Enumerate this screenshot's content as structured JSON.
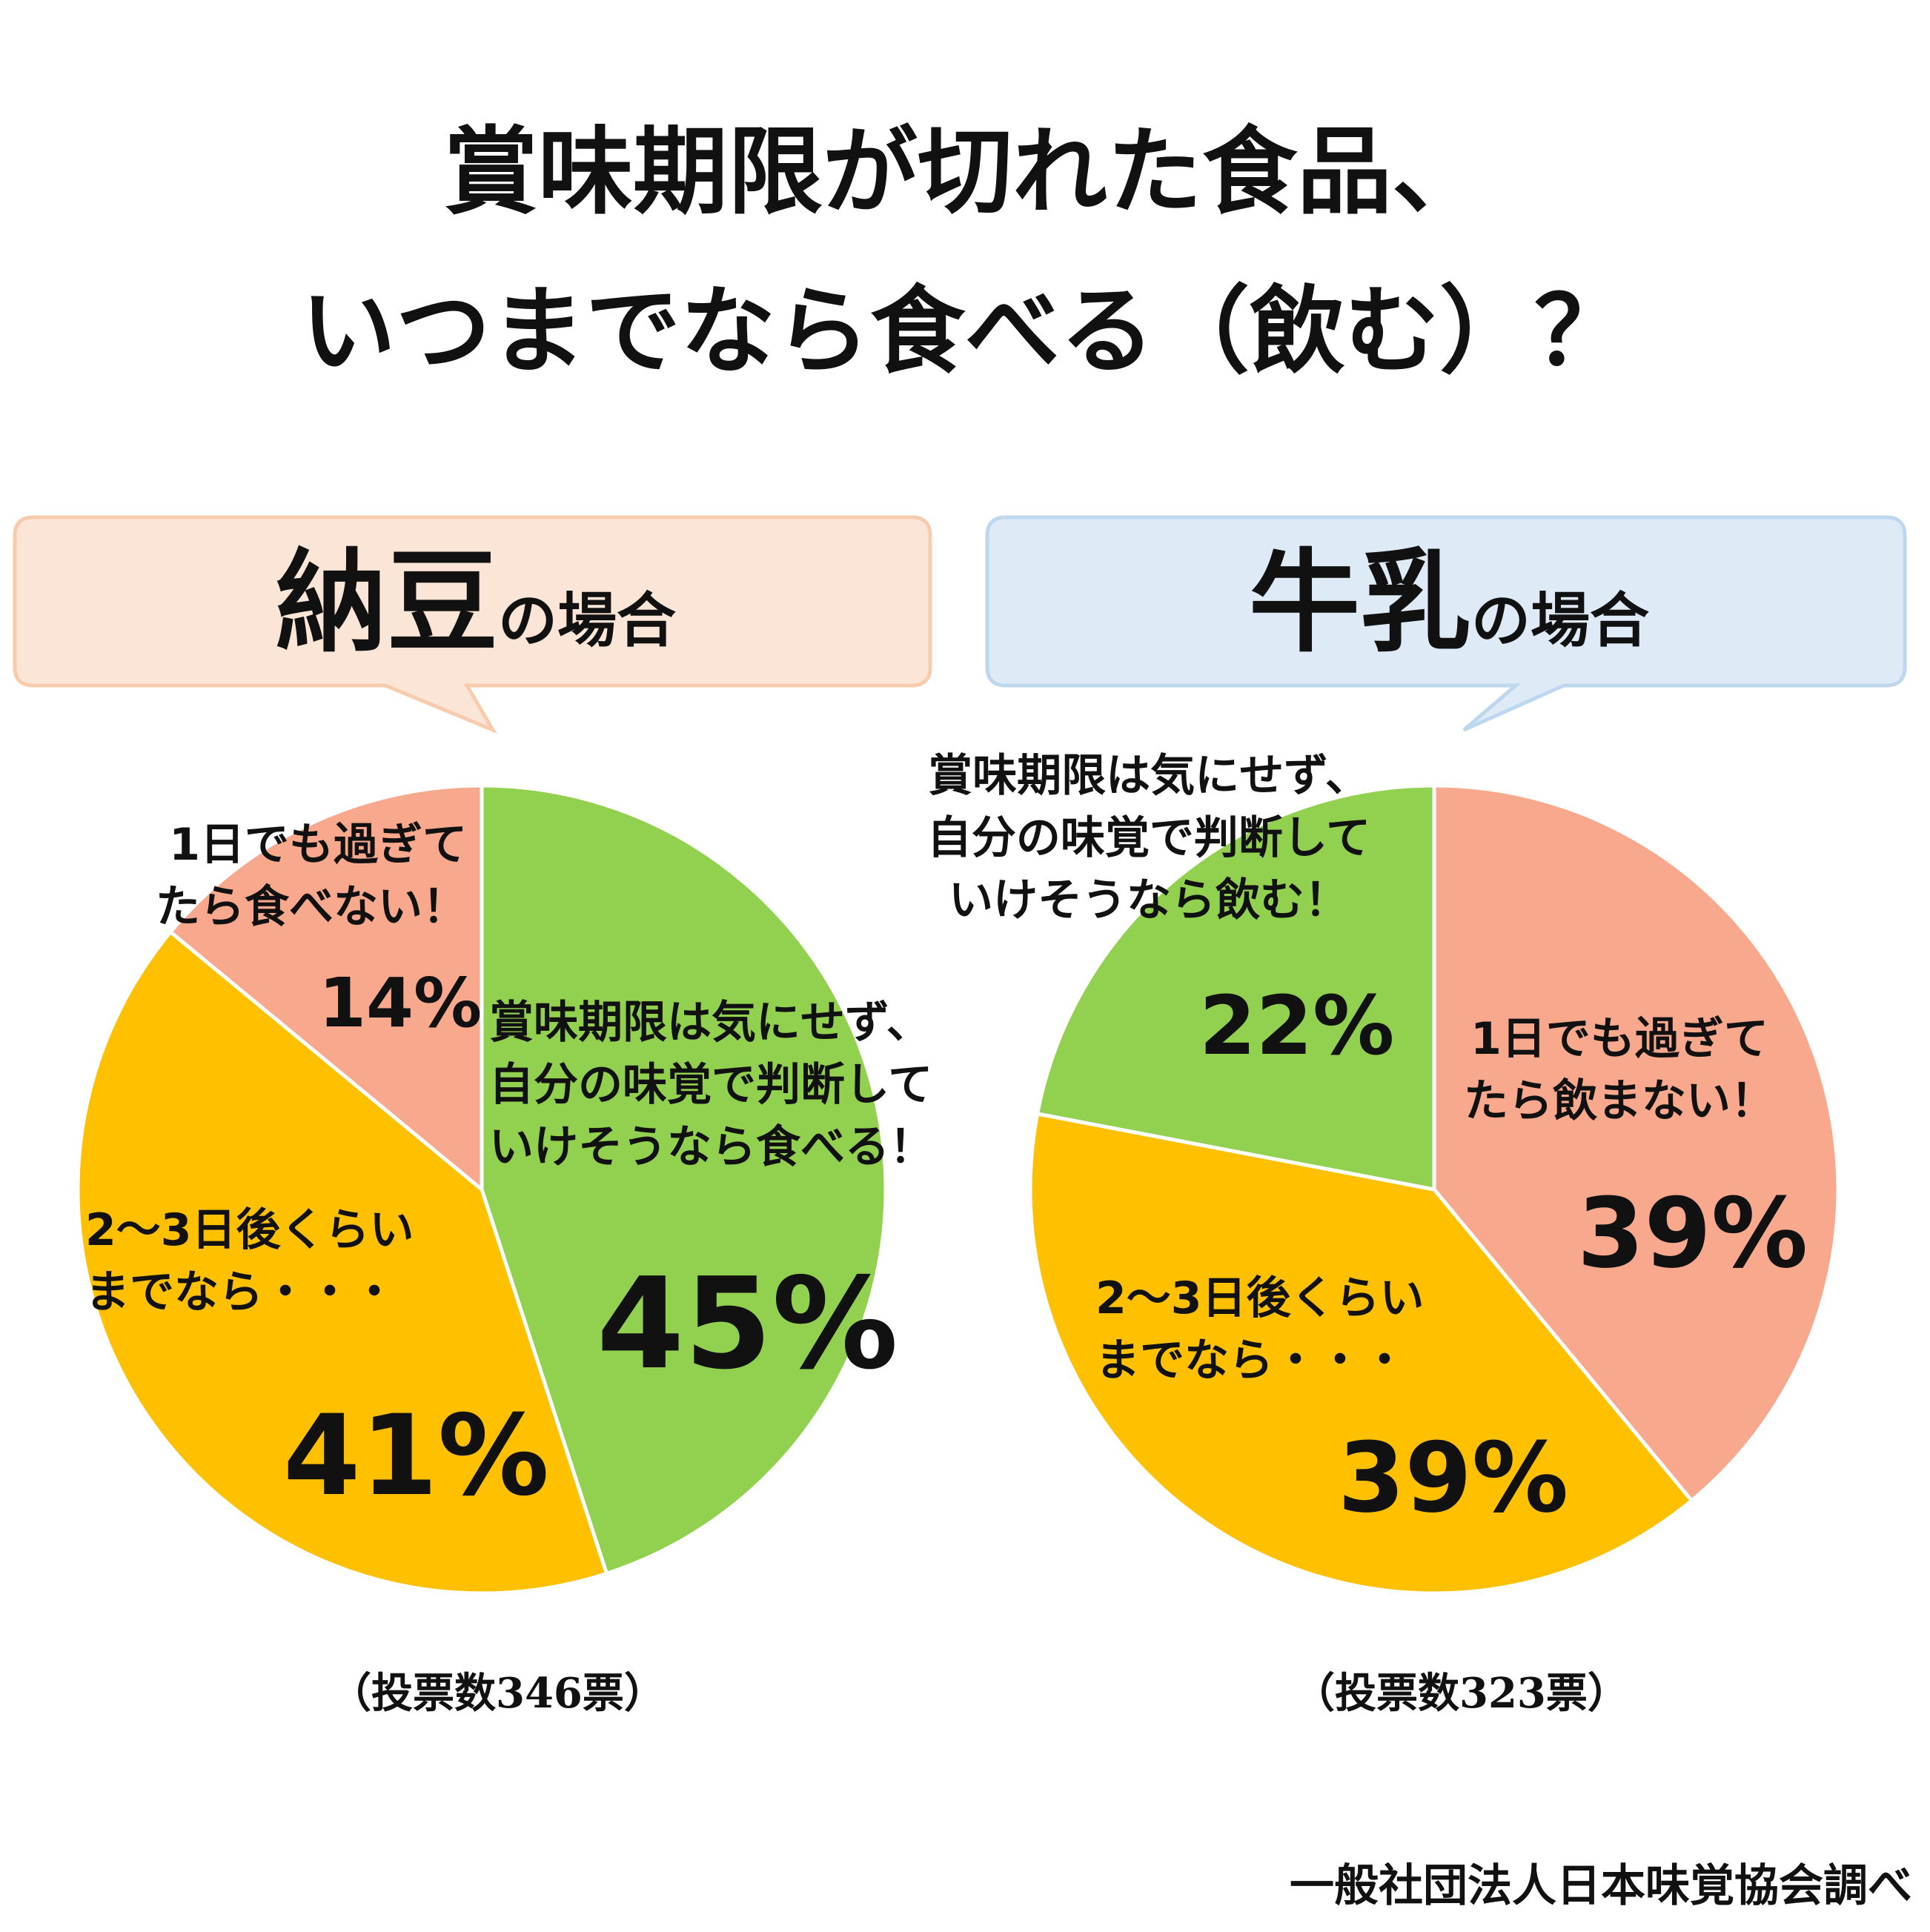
{
  "title_lines": [
    "賞味期限が切れた食品、",
    "いつまでなら食べる（飲む）？"
  ],
  "colors": {
    "green": "#92d050",
    "orange": "#ffc000",
    "salmon": "#f8a98d",
    "bubble_natto_fill": "#fbe5d6",
    "bubble_natto_stroke": "#f8cbad",
    "bubble_milk_fill": "#deebf7",
    "bubble_milk_stroke": "#bdd7ee"
  },
  "natto": {
    "heading_main": "納豆",
    "heading_suffix": "の場合",
    "votes": "（投票数346票）",
    "slices": [
      {
        "label_lines": [
          "賞味期限は気にせず、",
          "自分の味覚で判断して",
          "いけそうなら食べる！"
        ],
        "pct": "45%"
      },
      {
        "label_lines": [
          "2〜3日後くらい",
          "までなら・・・"
        ],
        "pct": "41%"
      },
      {
        "label_lines": [
          "1日でも過ぎて",
          "たら食べない！"
        ],
        "pct": "14%"
      }
    ]
  },
  "milk": {
    "heading_main": "牛乳",
    "heading_suffix": "の場合",
    "votes": "（投票数323票）",
    "slices": [
      {
        "label_lines": [
          "1日でも過ぎて",
          "たら飲まない！"
        ],
        "pct": "39%"
      },
      {
        "label_lines": [
          "2〜3日後くらい",
          "までなら・・・"
        ],
        "pct": "39%"
      },
      {
        "label_lines": [
          "賞味期限は気にせず、",
          "自分の味覚で判断して",
          "いけそうなら飲む！"
        ],
        "pct": "22%"
      }
    ]
  },
  "source": "一般社団法人日本味覚協会調べ",
  "chart_data": [
    {
      "type": "pie",
      "title": "納豆の場合",
      "note": "（投票数346票）",
      "categories": [
        "賞味期限は気にせず、自分の味覚で判断していけそうなら食べる！",
        "2〜3日後くらいまでなら・・・",
        "1日でも過ぎてたら食べない！"
      ],
      "values": [
        45,
        41,
        14
      ]
    },
    {
      "type": "pie",
      "title": "牛乳の場合",
      "note": "（投票数323票）",
      "categories": [
        "1日でも過ぎてたら飲まない！",
        "2〜3日後くらいまでなら・・・",
        "賞味期限は気にせず、自分の味覚で判断していけそうなら飲む！"
      ],
      "values": [
        39,
        39,
        22
      ]
    }
  ]
}
